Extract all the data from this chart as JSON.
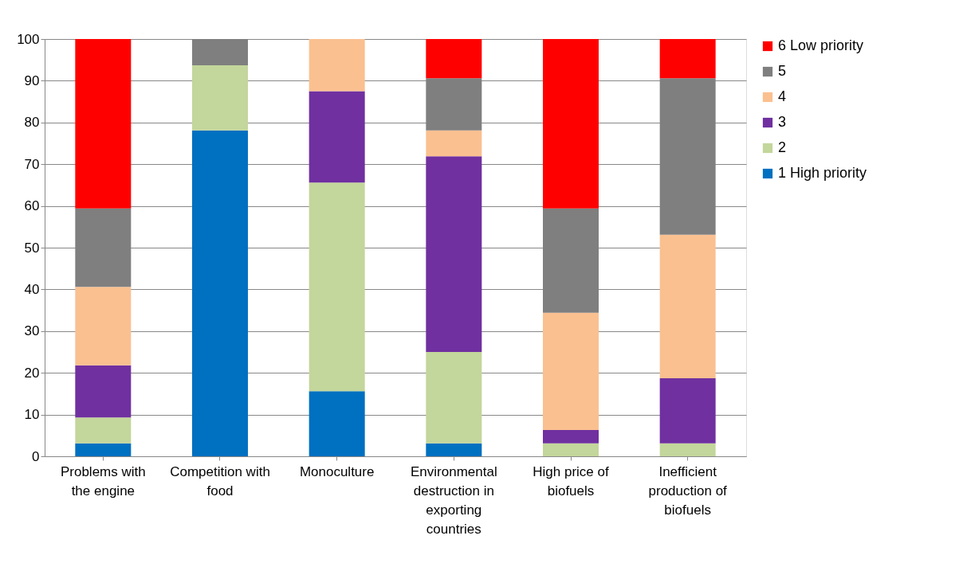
{
  "chart_data": {
    "type": "bar",
    "stacked": true,
    "categories": [
      "Problems with the engine",
      "Competition with food",
      "Monoculture",
      "Environmental destruction in exporting countries",
      "High price of biofuels",
      "Inefficient production of biofuels"
    ],
    "series": [
      {
        "name": "1 High priority",
        "color": "#0070c0",
        "values": [
          3.1,
          78.1,
          15.6,
          3.1,
          0,
          0
        ]
      },
      {
        "name": "2",
        "color": "#c3d69b",
        "values": [
          6.2,
          15.6,
          50,
          21.9,
          3.1,
          3.1
        ]
      },
      {
        "name": "3",
        "color": "#7030a0",
        "values": [
          12.5,
          0,
          21.9,
          46.9,
          3.2,
          15.6
        ]
      },
      {
        "name": "4",
        "color": "#fac090",
        "values": [
          18.8,
          0,
          12.5,
          6.2,
          28.1,
          34.4
        ]
      },
      {
        "name": "5",
        "color": "#7f7f7f",
        "values": [
          18.8,
          6.3,
          0,
          12.5,
          25,
          37.5
        ]
      },
      {
        "name": "6 Low priority",
        "color": "#ff0000",
        "values": [
          40.6,
          0,
          0,
          9.4,
          40.6,
          9.4
        ]
      }
    ],
    "ylim": [
      0,
      100
    ],
    "yticks": [
      0,
      10,
      20,
      30,
      40,
      50,
      60,
      70,
      80,
      90,
      100
    ],
    "grid": "y",
    "legend": "right"
  }
}
